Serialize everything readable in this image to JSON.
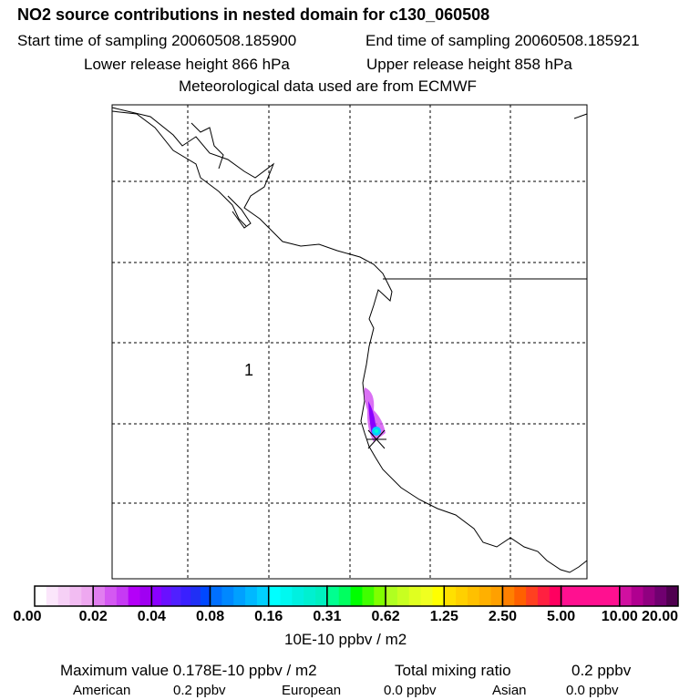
{
  "header": {
    "title": "NO2 source contributions in nested domain for c130_060508",
    "start_label": "Start time of sampling 20060508.185900",
    "end_label": "End time of sampling 20060508.185921",
    "lower_label": "Lower release height  866 hPa",
    "upper_label": "Upper release height  858 hPa",
    "met_label": "Meteorological data used are from ECMWF"
  },
  "chart_data": {
    "type": "heatmap",
    "title": "NO2 source contributions in nested domain for c130_060508",
    "map_label": "1",
    "colorbar": {
      "ticks": [
        "0.00",
        "0.02",
        "0.04",
        "0.08",
        "0.16",
        "0.31",
        "0.62",
        "1.25",
        "2.50",
        "5.00",
        "10.00",
        "20.00"
      ],
      "unit": "10E-10 ppbv / m2",
      "segment_colors": [
        [
          "#ffffff",
          "#fbe6fb",
          "#f6d0f6",
          "#f2bcf2",
          "#eea8f0"
        ],
        [
          "#e17ef0",
          "#d458f2",
          "#c63af4",
          "#b400f8",
          "#a000f2"
        ],
        [
          "#8a00ff",
          "#6a10ff",
          "#5020ff",
          "#3a20ff",
          "#2030f5",
          "#0048ff"
        ],
        [
          "#0070ff",
          "#0088ff",
          "#00a0ff",
          "#00b8ff",
          "#00d0ff"
        ],
        [
          "#00ffff",
          "#00f8f0",
          "#00f0e0",
          "#00f0d0",
          "#00f0c0"
        ],
        [
          "#00ff90",
          "#00ff60",
          "#00ff00",
          "#40ff00",
          "#80ff00"
        ],
        [
          "#b0ff20",
          "#c8ff20",
          "#e0ff20",
          "#f0ff20",
          "#ffff00"
        ],
        [
          "#ffe000",
          "#ffd000",
          "#ffc000",
          "#ffb000",
          "#ffa000"
        ],
        [
          "#ff8000",
          "#ff6000",
          "#ff4020",
          "#ff2040",
          "#ff0060"
        ],
        [
          "#ff1090",
          "#ff1090",
          "#ff1090",
          "#ff1090",
          "#ff1090"
        ],
        [
          "#d010a0",
          "#b00090",
          "#900080",
          "#700070",
          "#500050"
        ]
      ],
      "plume": [
        {
          "lat_idx": 0.55,
          "value": 0.02
        },
        {
          "lat_idx": 0.6,
          "value": 0.04
        },
        {
          "max": 0.178
        }
      ]
    }
  },
  "footer": {
    "max_label": "Maximum value  0.178E-10 ppbv / m2",
    "total_label": "Total mixing ratio",
    "total_value": "0.2 ppbv",
    "american_label": "American",
    "american_value": "0.2 ppbv",
    "european_label": "European",
    "european_value": "0.0 ppbv",
    "asian_label": "Asian",
    "asian_value": "0.0 ppbv"
  }
}
